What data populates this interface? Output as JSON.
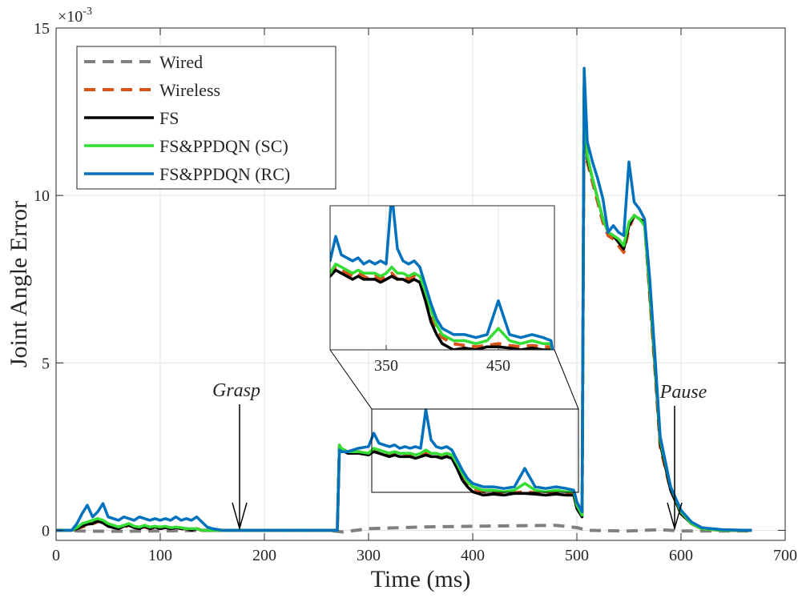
{
  "chart_data": {
    "type": "line",
    "title": "",
    "xlabel": "Time (ms)",
    "ylabel": "Joint Angle Error",
    "y_exponent": "×10",
    "y_exponent_power": "-3",
    "xlim": [
      0,
      700
    ],
    "ylim": [
      -0.3,
      15
    ],
    "xticks": [
      0,
      100,
      200,
      300,
      400,
      500,
      600,
      700
    ],
    "yticks": [
      0,
      5,
      10,
      15
    ],
    "grid": true,
    "legend_location": "top-left",
    "colors": {
      "wired": "#808080",
      "wireless": "#d95319",
      "fs": "#000000",
      "sc": "#33dd33",
      "rc": "#0072bd"
    },
    "annotations": [
      {
        "text": "Grasp",
        "x": 178,
        "y": 0
      },
      {
        "text": "Pause",
        "x": 592,
        "y": 0
      }
    ],
    "inset": {
      "xlim": [
        300,
        500
      ],
      "ylim": [
        1.05,
        3.4
      ],
      "xticks": [
        350,
        450
      ],
      "xtick_labels": [
        "350",
        "450"
      ]
    },
    "series": [
      {
        "name": "Wired",
        "key": "wired",
        "style": "dashed",
        "x": [
          0,
          15,
          20,
          50,
          100,
          150,
          200,
          260,
          270,
          275,
          300,
          350,
          400,
          450,
          480,
          500,
          510,
          550,
          580,
          600,
          620,
          650,
          668
        ],
        "values": [
          0,
          0,
          -0.02,
          -0.03,
          -0.02,
          0,
          0,
          0,
          -0.03,
          -0.05,
          0.05,
          0.1,
          0.12,
          0.14,
          0.15,
          0.08,
          0,
          -0.02,
          0.02,
          -0.02,
          -0.02,
          -0.02,
          -0.02
        ]
      },
      {
        "name": "Wireless",
        "key": "wireless",
        "style": "dashed",
        "x": [
          0,
          15,
          20,
          25,
          30,
          35,
          40,
          45,
          50,
          55,
          60,
          65,
          70,
          75,
          80,
          85,
          90,
          95,
          100,
          105,
          110,
          115,
          120,
          125,
          130,
          135,
          140,
          145,
          150,
          160,
          200,
          250,
          270,
          272,
          274,
          280,
          290,
          300,
          305,
          310,
          315,
          320,
          325,
          330,
          335,
          340,
          345,
          350,
          355,
          360,
          365,
          370,
          375,
          380,
          385,
          390,
          395,
          400,
          410,
          420,
          430,
          440,
          450,
          460,
          470,
          480,
          490,
          497,
          500,
          505,
          507,
          510,
          515,
          520,
          525,
          530,
          535,
          540,
          545,
          550,
          555,
          560,
          565,
          570,
          575,
          580,
          590,
          600,
          610,
          620,
          640,
          668
        ],
        "values": [
          0,
          0,
          0.05,
          0.1,
          0.15,
          0.2,
          0.25,
          0.3,
          0.15,
          0.1,
          0.05,
          0.1,
          0.15,
          0.1,
          0.05,
          0.1,
          0.05,
          0.1,
          0.05,
          0.1,
          0.05,
          0.1,
          0.05,
          0.05,
          0,
          0.05,
          0,
          0,
          0,
          0,
          0,
          0,
          0,
          2.5,
          2.4,
          2.3,
          2.35,
          2.3,
          2.4,
          2.35,
          2.3,
          2.25,
          2.3,
          2.25,
          2.2,
          2.25,
          2.2,
          2.25,
          2.3,
          2.2,
          2.25,
          2.2,
          2.25,
          2.2,
          1.9,
          1.6,
          1.4,
          1.25,
          1.15,
          1.12,
          1.1,
          1.12,
          1.15,
          1.12,
          1.1,
          1.12,
          1.1,
          1.1,
          0.7,
          0.4,
          13.2,
          11.0,
          10.4,
          9.8,
          9.2,
          8.8,
          8.7,
          8.5,
          8.3,
          9.0,
          9.4,
          9.3,
          9.2,
          7.0,
          4.8,
          2.5,
          1.2,
          0.5,
          0.2,
          0.05,
          0,
          0
        ]
      },
      {
        "name": "FS",
        "key": "fs",
        "style": "solid",
        "x": [
          0,
          15,
          20,
          25,
          30,
          35,
          40,
          45,
          50,
          55,
          60,
          65,
          70,
          75,
          80,
          85,
          90,
          95,
          100,
          105,
          110,
          115,
          120,
          125,
          130,
          135,
          140,
          145,
          150,
          160,
          200,
          250,
          270,
          272,
          274,
          280,
          290,
          300,
          305,
          310,
          315,
          320,
          325,
          330,
          335,
          340,
          345,
          350,
          355,
          360,
          365,
          370,
          375,
          380,
          385,
          390,
          395,
          400,
          410,
          420,
          430,
          440,
          450,
          460,
          470,
          480,
          490,
          497,
          500,
          505,
          507,
          510,
          515,
          520,
          525,
          530,
          535,
          540,
          545,
          550,
          555,
          560,
          565,
          570,
          575,
          580,
          590,
          600,
          610,
          620,
          640,
          668
        ],
        "values": [
          0,
          0,
          0.05,
          0.12,
          0.18,
          0.2,
          0.28,
          0.22,
          0.12,
          0.08,
          0.05,
          0.12,
          0.15,
          0.08,
          0.05,
          0.12,
          0.05,
          0.1,
          0.05,
          0.08,
          0.05,
          0.08,
          0.05,
          0.05,
          0,
          0.05,
          0,
          0,
          0,
          0,
          0,
          0,
          0,
          2.5,
          2.4,
          2.3,
          2.3,
          2.25,
          2.35,
          2.3,
          2.25,
          2.2,
          2.25,
          2.2,
          2.2,
          2.2,
          2.15,
          2.2,
          2.25,
          2.2,
          2.2,
          2.15,
          2.2,
          2.15,
          1.85,
          1.5,
          1.3,
          1.15,
          1.05,
          1.08,
          1.05,
          1.1,
          1.1,
          1.08,
          1.05,
          1.08,
          1.05,
          1.05,
          0.65,
          0.4,
          13.3,
          11.1,
          10.5,
          9.9,
          9.3,
          8.9,
          8.8,
          8.6,
          8.4,
          9.1,
          9.4,
          9.3,
          9.2,
          7.1,
          4.9,
          2.6,
          1.2,
          0.5,
          0.2,
          0.05,
          0,
          0
        ]
      },
      {
        "name": "FS&PPDQN (SC)",
        "key": "sc",
        "style": "solid",
        "x": [
          0,
          15,
          20,
          25,
          30,
          35,
          40,
          45,
          50,
          55,
          60,
          65,
          70,
          75,
          80,
          85,
          90,
          95,
          100,
          105,
          110,
          115,
          120,
          125,
          130,
          135,
          140,
          145,
          150,
          160,
          200,
          250,
          270,
          272,
          274,
          280,
          290,
          300,
          305,
          310,
          315,
          320,
          325,
          330,
          335,
          340,
          345,
          350,
          355,
          360,
          365,
          370,
          375,
          380,
          385,
          390,
          395,
          400,
          410,
          420,
          430,
          440,
          450,
          460,
          470,
          480,
          490,
          497,
          500,
          505,
          507,
          510,
          515,
          520,
          525,
          530,
          535,
          540,
          545,
          550,
          555,
          560,
          565,
          570,
          575,
          580,
          590,
          600,
          610,
          620,
          640,
          668
        ],
        "values": [
          0,
          0,
          0.08,
          0.2,
          0.25,
          0.3,
          0.35,
          0.3,
          0.2,
          0.15,
          0.1,
          0.15,
          0.2,
          0.12,
          0.1,
          0.15,
          0.1,
          0.12,
          0.1,
          0.12,
          0.08,
          0.1,
          0.08,
          0.05,
          0.05,
          0.05,
          0,
          0,
          0,
          0,
          0,
          0,
          0,
          2.55,
          2.45,
          2.35,
          2.35,
          2.3,
          2.45,
          2.4,
          2.35,
          2.3,
          2.35,
          2.3,
          2.3,
          2.3,
          2.25,
          2.3,
          2.4,
          2.3,
          2.3,
          2.25,
          2.3,
          2.25,
          2.0,
          1.7,
          1.45,
          1.3,
          1.2,
          1.2,
          1.15,
          1.2,
          1.4,
          1.2,
          1.15,
          1.2,
          1.15,
          1.15,
          0.75,
          0.45,
          13.3,
          11.2,
          10.5,
          9.9,
          9.3,
          8.9,
          8.8,
          8.7,
          8.5,
          9.2,
          9.4,
          9.3,
          9.1,
          7.2,
          5.0,
          2.7,
          1.3,
          0.55,
          0.2,
          0.05,
          0,
          0
        ]
      },
      {
        "name": "FS&PPDQN (RC)",
        "key": "rc",
        "style": "solid",
        "x": [
          0,
          15,
          20,
          25,
          30,
          35,
          40,
          45,
          50,
          55,
          60,
          65,
          70,
          75,
          80,
          85,
          90,
          95,
          100,
          105,
          110,
          115,
          120,
          125,
          130,
          135,
          140,
          145,
          150,
          160,
          200,
          250,
          270,
          272,
          274,
          280,
          290,
          300,
          305,
          310,
          315,
          320,
          325,
          330,
          335,
          340,
          345,
          350,
          355,
          360,
          365,
          370,
          375,
          380,
          385,
          390,
          395,
          400,
          410,
          420,
          430,
          440,
          450,
          460,
          470,
          480,
          490,
          497,
          500,
          505,
          507,
          510,
          515,
          520,
          525,
          530,
          535,
          540,
          545,
          550,
          555,
          560,
          565,
          570,
          575,
          580,
          590,
          600,
          610,
          620,
          640,
          668
        ],
        "values": [
          0,
          0,
          0.2,
          0.5,
          0.75,
          0.4,
          0.55,
          0.8,
          0.4,
          0.35,
          0.3,
          0.4,
          0.35,
          0.3,
          0.4,
          0.35,
          0.3,
          0.35,
          0.3,
          0.35,
          0.3,
          0.4,
          0.3,
          0.35,
          0.3,
          0.4,
          0.25,
          0.1,
          0.05,
          0,
          0,
          0,
          0,
          2.4,
          2.35,
          2.35,
          2.45,
          2.5,
          2.9,
          2.6,
          2.55,
          2.5,
          2.55,
          2.45,
          2.5,
          2.45,
          2.5,
          2.45,
          3.6,
          2.7,
          2.5,
          2.45,
          2.5,
          2.4,
          2.1,
          1.8,
          1.55,
          1.4,
          1.3,
          1.3,
          1.25,
          1.3,
          1.85,
          1.3,
          1.25,
          1.3,
          1.25,
          1.2,
          0.85,
          0.55,
          13.8,
          11.6,
          11.0,
          10.5,
          9.9,
          8.9,
          9.1,
          8.9,
          8.8,
          11.0,
          9.8,
          9.6,
          9.3,
          7.5,
          5.2,
          2.8,
          1.3,
          0.6,
          0.25,
          0.08,
          0.02,
          0
        ]
      }
    ]
  }
}
